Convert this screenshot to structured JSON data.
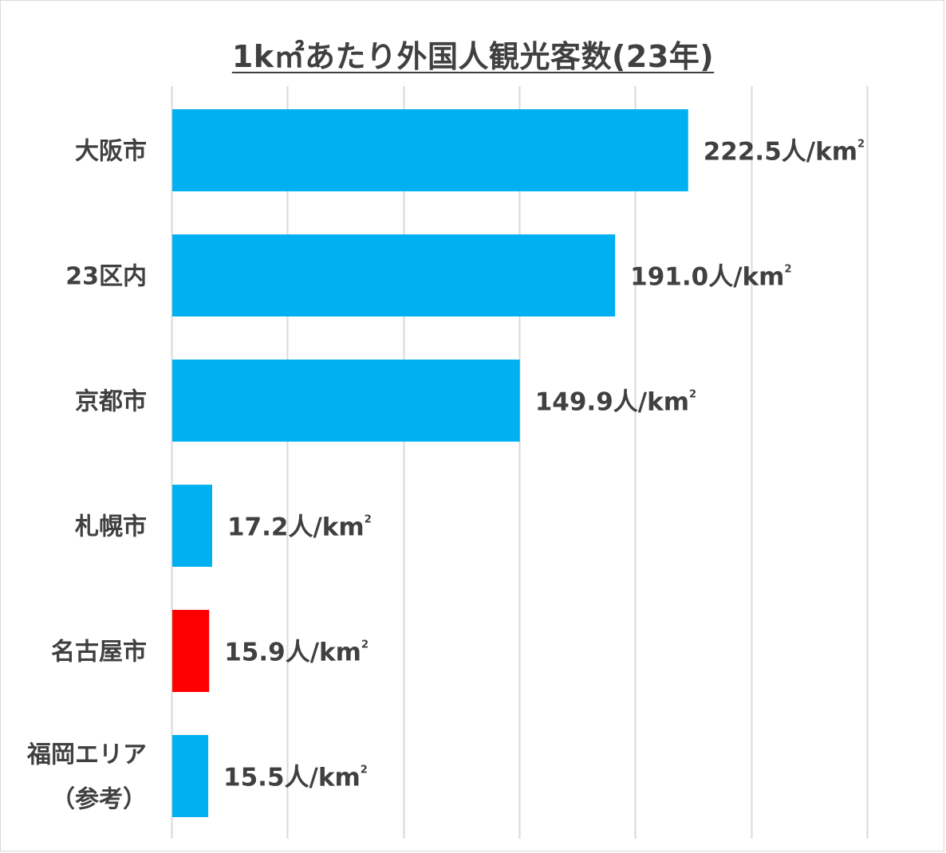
{
  "chart_data": {
    "type": "bar",
    "orientation": "horizontal",
    "title": "1k㎡あたり外国人観光客数(23年)",
    "categories": [
      [
        "大阪市"
      ],
      [
        "23区内"
      ],
      [
        "京都市"
      ],
      [
        "札幌市"
      ],
      [
        "名古屋市"
      ],
      [
        "福岡エリア",
        "（参考）"
      ]
    ],
    "values": [
      222.5,
      191.0,
      149.9,
      17.2,
      15.9,
      15.5
    ],
    "value_labels": [
      "222.5",
      "191.0",
      "149.9",
      "17.2",
      "15.9",
      "15.5"
    ],
    "unit_label": "人/km",
    "unit_superscript": "2",
    "bar_colors": [
      "#00b0f0",
      "#00b0f0",
      "#00b0f0",
      "#00b0f0",
      "#ff0000",
      "#00b0f0"
    ],
    "xlim": [
      0,
      300
    ],
    "x_gridline_step": 50,
    "grid": true,
    "gridline_color": "#d9d9d9",
    "legend": "none",
    "xlabel": "",
    "ylabel": ""
  }
}
